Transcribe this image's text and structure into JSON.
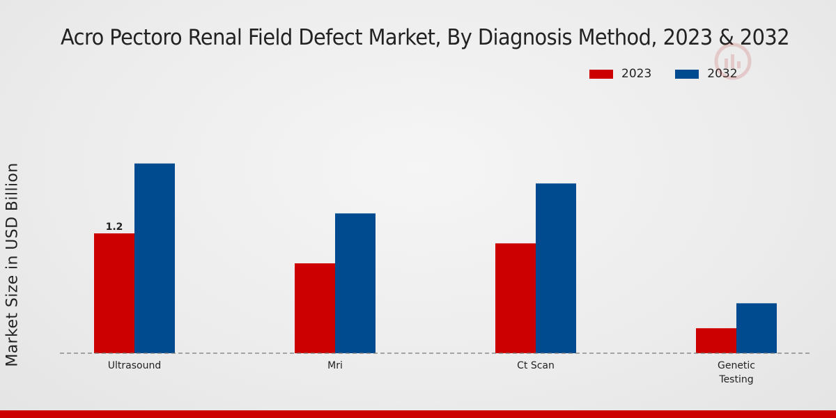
{
  "chart_data": {
    "type": "bar",
    "title": "Acro Pectoro Renal Field Defect Market, By Diagnosis Method, 2023 & 2032",
    "xlabel": "",
    "ylabel": "Market Size in USD Billion",
    "categories": [
      "Ultrasound",
      "Mri",
      "Ct Scan",
      "Genetic Testing"
    ],
    "category_lines": [
      [
        "Ultrasound"
      ],
      [
        "Mri"
      ],
      [
        "Ct Scan"
      ],
      [
        "Genetic",
        "Testing"
      ]
    ],
    "series": [
      {
        "name": "2023",
        "color": "#cc0000",
        "values": [
          1.2,
          0.9,
          1.1,
          0.25
        ]
      },
      {
        "name": "2032",
        "color": "#004a8f",
        "values": [
          1.9,
          1.4,
          1.7,
          0.5
        ]
      }
    ],
    "data_labels": [
      {
        "series": "2023",
        "category": "Ultrasound",
        "text": "1.2"
      }
    ],
    "ylim": [
      0,
      2.7
    ],
    "grid": false,
    "legend_position": "top-right"
  },
  "colors": {
    "footer": "#cc0000",
    "baseline": "#777777"
  }
}
